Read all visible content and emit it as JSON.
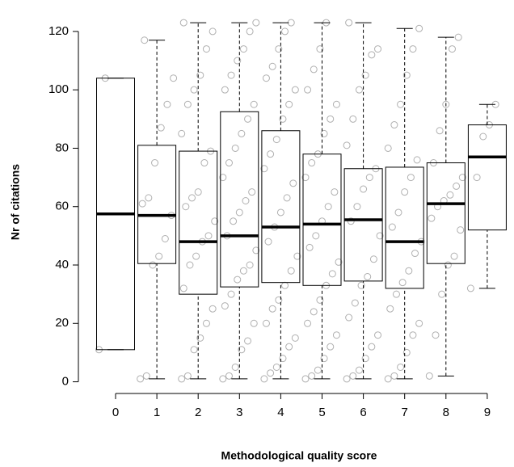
{
  "chart_data": {
    "type": "box",
    "x_label": "Methodological quality score",
    "y_label": "Nr of citations",
    "categories": [
      "0",
      "1",
      "2",
      "3",
      "4",
      "5",
      "6",
      "7",
      "8",
      "9"
    ],
    "boxes": [
      {
        "min": 11,
        "q1": 11,
        "median": 57.5,
        "q3": 104,
        "max": 104
      },
      {
        "min": 1,
        "q1": 40.5,
        "median": 57,
        "q3": 81,
        "max": 117
      },
      {
        "min": 1,
        "q1": 30,
        "median": 48,
        "q3": 79,
        "max": 123
      },
      {
        "min": 1,
        "q1": 32.5,
        "median": 50,
        "q3": 92.5,
        "max": 123
      },
      {
        "min": 1,
        "q1": 34,
        "median": 53,
        "q3": 86,
        "max": 123
      },
      {
        "min": 1,
        "q1": 33,
        "median": 54,
        "q3": 78,
        "max": 123
      },
      {
        "min": 1,
        "q1": 34.5,
        "median": 55.5,
        "q3": 73,
        "max": 123
      },
      {
        "min": 1,
        "q1": 32,
        "median": 48,
        "q3": 73.5,
        "max": 121
      },
      {
        "min": 2,
        "q1": 40.5,
        "median": 61,
        "q3": 75,
        "max": 118
      },
      {
        "min": 32,
        "q1": 52,
        "median": 77,
        "q3": 88,
        "max": 95
      }
    ],
    "points": [
      [
        11,
        104
      ],
      [
        1,
        2,
        40,
        43,
        49,
        57,
        61,
        63,
        75,
        87,
        95,
        104,
        117
      ],
      [
        1,
        2,
        11,
        15,
        20,
        25,
        32,
        40,
        43,
        48,
        50,
        55,
        60,
        63,
        65,
        75,
        79,
        85,
        95,
        100,
        105,
        114,
        120,
        123
      ],
      [
        1,
        2,
        5,
        11,
        14,
        20,
        26,
        30,
        35,
        38,
        40,
        45,
        50,
        55,
        58,
        62,
        65,
        70,
        75,
        80,
        85,
        90,
        95,
        100,
        105,
        110,
        114,
        120,
        123
      ],
      [
        1,
        3,
        5,
        8,
        12,
        15,
        20,
        25,
        28,
        33,
        38,
        43,
        48,
        53,
        58,
        63,
        68,
        73,
        78,
        83,
        90,
        95,
        100,
        104,
        108,
        114,
        120,
        123
      ],
      [
        1,
        2,
        4,
        8,
        12,
        16,
        20,
        24,
        28,
        33,
        37,
        41,
        46,
        50,
        55,
        60,
        65,
        70,
        75,
        78,
        85,
        90,
        95,
        100,
        107,
        114,
        123
      ],
      [
        1,
        2,
        4,
        8,
        12,
        16,
        22,
        27,
        33,
        36,
        42,
        50,
        55,
        60,
        66,
        70,
        73,
        81,
        90,
        100,
        105,
        112,
        114,
        123
      ],
      [
        1,
        2,
        5,
        10,
        16,
        20,
        25,
        30,
        34,
        38,
        44,
        48,
        53,
        58,
        65,
        70,
        76,
        80,
        88,
        95,
        105,
        114,
        121
      ],
      [
        2,
        16,
        30,
        40,
        43,
        52,
        56,
        60,
        62,
        64,
        67,
        70,
        75,
        86,
        95,
        114,
        118
      ],
      [
        32,
        70,
        84,
        88,
        95
      ]
    ],
    "box_color": "#000000",
    "point_color": "#b0b0b0",
    "ylim": [
      -4,
      128
    ],
    "yticks": [
      0,
      20,
      40,
      60,
      80,
      100,
      120
    ]
  }
}
